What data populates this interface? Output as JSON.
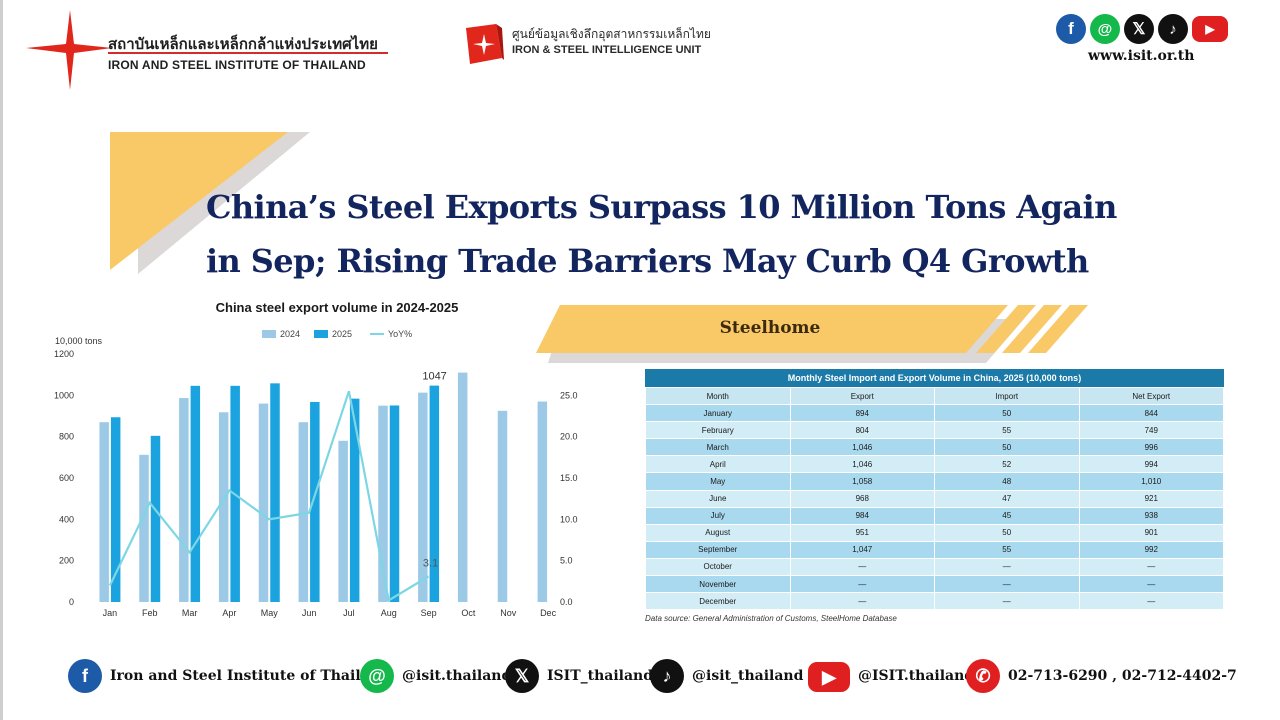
{
  "header": {
    "org_name_th": "สถาบันเหล็กและเหล็กกล้าแห่งประเทศไทย",
    "org_name_en": "IRON AND STEEL INSTITUTE OF THAILAND",
    "unit_name_th": "ศูนย์ข้อมูลเชิงลึกอุตสาหกรรมเหล็กไทย",
    "unit_name_en": "IRON & STEEL INTELLIGENCE UNIT",
    "website": "www.isit.or.th",
    "social_icons": [
      "facebook-icon",
      "line-icon",
      "x-icon",
      "tiktok-icon",
      "youtube-icon"
    ]
  },
  "title": {
    "line1": "China’s Steel Exports Surpass 10 Million Tons Again",
    "line2": "in Sep; Rising Trade Barriers May Curb Q4 Growth"
  },
  "source_label": "Steelhome",
  "chart_data": {
    "type": "bar",
    "title": "China steel export volume in 2024-2025",
    "ylabel": "10,000 tons",
    "categories": [
      "Jan",
      "Feb",
      "Mar",
      "Apr",
      "May",
      "Jun",
      "Jul",
      "Aug",
      "Sep",
      "Oct",
      "Nov",
      "Dec"
    ],
    "ylim": [
      0,
      1200
    ],
    "y_ticks": [
      "0",
      "200",
      "400",
      "600",
      "800",
      "1000",
      "1200"
    ],
    "y2lim": [
      0,
      30
    ],
    "y2_ticks": [
      "0.0",
      "5.0",
      "10.0",
      "15.0",
      "20.0",
      "25.0"
    ],
    "series": [
      {
        "name": "2024",
        "type": "bar",
        "color": "#9cc9e6",
        "values": [
          870,
          712,
          987,
          918,
          960,
          870,
          780,
          950,
          1013,
          1110,
          925,
          970
        ]
      },
      {
        "name": "2025",
        "type": "bar",
        "color": "#1aa3df",
        "values": [
          894,
          804,
          1046,
          1046,
          1058,
          968,
          984,
          951,
          1047,
          null,
          null,
          null
        ]
      },
      {
        "name": "YoY%",
        "type": "line",
        "axis": "right",
        "color": "#7dd6e4",
        "values": [
          2.0,
          12.0,
          6.0,
          13.5,
          10.0,
          10.8,
          25.5,
          0.2,
          3.1,
          null,
          null,
          null
        ]
      }
    ],
    "data_labels": {
      "bar_2025_sep": "1047",
      "yoy_sep": "3.1"
    },
    "legend_position": "top-center",
    "grid": false
  },
  "table": {
    "caption": "Monthly Steel Import and Export Volume in China, 2025 (10,000 tons)",
    "columns": [
      "Month",
      "Export",
      "Import",
      "Net Export"
    ],
    "rows": [
      [
        "January",
        "894",
        "50",
        "844"
      ],
      [
        "February",
        "804",
        "55",
        "749"
      ],
      [
        "March",
        "1,046",
        "50",
        "996"
      ],
      [
        "April",
        "1,046",
        "52",
        "994"
      ],
      [
        "May",
        "1,058",
        "48",
        "1,010"
      ],
      [
        "June",
        "968",
        "47",
        "921"
      ],
      [
        "July",
        "984",
        "45",
        "938"
      ],
      [
        "August",
        "951",
        "50",
        "901"
      ],
      [
        "September",
        "1,047",
        "55",
        "992"
      ],
      [
        "October",
        "—",
        "—",
        "—"
      ],
      [
        "November",
        "—",
        "—",
        "—"
      ],
      [
        "December",
        "—",
        "—",
        "—"
      ]
    ],
    "note": "Data source: General Administration of Customs, SteelHome Database"
  },
  "footer": {
    "facebook": "Iron and Steel Institute of Thailand",
    "line": "@isit.thailand",
    "x": "ISIT_thailand",
    "tiktok": "@isit_thailand",
    "youtube": "@ISIT.thailand",
    "phone": "02-713-6290 , 02-712-4402-7"
  }
}
